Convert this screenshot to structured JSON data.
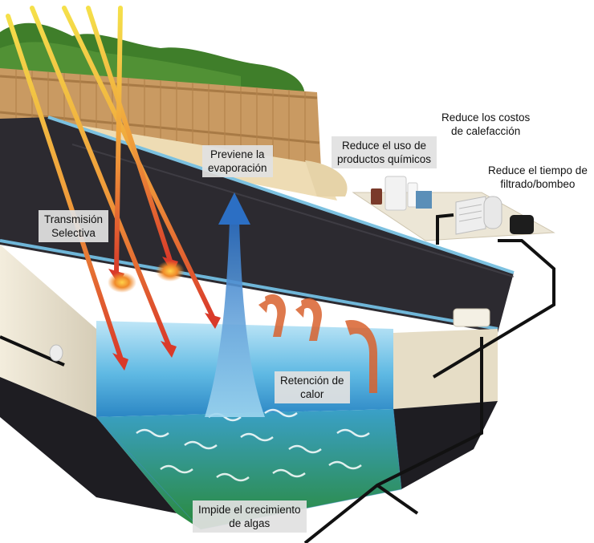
{
  "labels": {
    "transmision": {
      "line1": "Transmisión",
      "line2": "Selectiva"
    },
    "evaporacion": {
      "line1": "Previene la",
      "line2": "evaporación"
    },
    "quimicos": {
      "line1": "Reduce el uso de",
      "line2": "productos químicos"
    },
    "calefaccion": {
      "line1": "Reduce los costos",
      "line2": "de calefacción"
    },
    "filtrado": {
      "line1": "Reduce el tiempo de",
      "line2": "filtrado/bombeo"
    },
    "retencion": {
      "line1": "Retención de",
      "line2": "calor"
    },
    "algas": {
      "line1": "Impide el crecimiento",
      "line2": "de algas"
    }
  },
  "colors": {
    "cover": "#2c2a30",
    "water": "#59b8e2",
    "deck": "#eedcb4",
    "fence": "#c99a62",
    "hedge": "#3f7e2a",
    "sunray": "#f0d23a",
    "heat_arrow": "#d9622e",
    "vapor_arrow": "#3a7fd0",
    "pool_wall": "#efe8d6",
    "algae_floor": "#2e8a3e"
  },
  "icons": [
    "sun-rays",
    "vapor-arrow",
    "heat-arrows",
    "chemical-bottles",
    "heater-unit",
    "filter-pump",
    "return-jet",
    "skimmer",
    "pipes"
  ]
}
